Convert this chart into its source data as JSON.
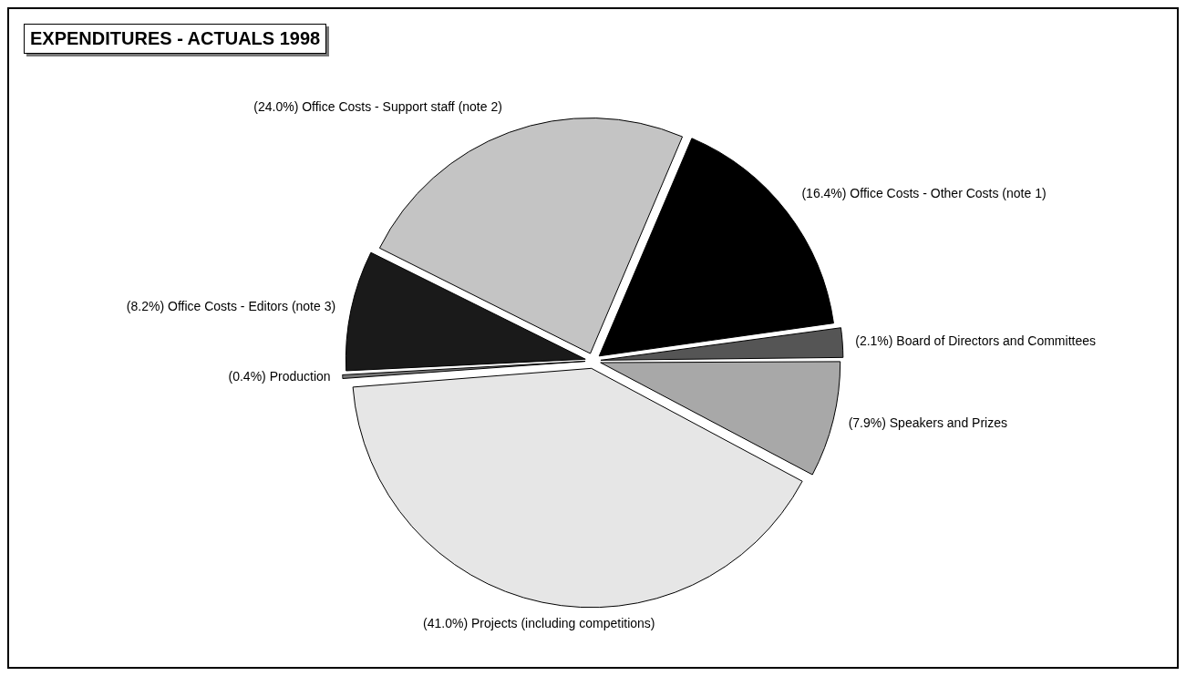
{
  "chart_data": {
    "type": "pie",
    "title": "EXPENDITURES - ACTUALS 1998",
    "categories": [
      "Office Costs - Other Costs (note 1)",
      "Board of Directors and Committees",
      "Speakers and Prizes",
      "Projects (including competitions)",
      "Production",
      "Office Costs - Editors (note 3)",
      "Office Costs - Support staff (note 2)"
    ],
    "values": [
      16.4,
      2.1,
      7.9,
      41.0,
      0.4,
      8.2,
      24.0
    ],
    "value_labels": [
      "(16.4%)",
      "(2.1%)",
      "(7.9%)",
      "(41.0%)",
      "(0.4%)",
      "(8.2%)",
      "(24.0%)"
    ],
    "colors": [
      "#000000",
      "#555555",
      "#a8a8a8",
      "#e6e6e6",
      "#777777",
      "#1a1a1a",
      "#c4c4c4"
    ],
    "legend": false
  }
}
